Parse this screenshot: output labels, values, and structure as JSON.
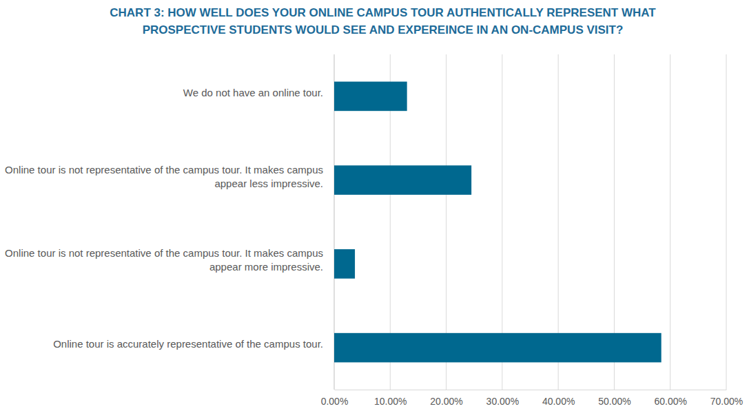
{
  "chart_data": {
    "type": "bar",
    "title": "CHART 3: HOW WELL DOES YOUR ONLINE CAMPUS TOUR AUTHENTICALLY REPRESENT WHAT PROSPECTIVE STUDENTS WOULD SEE AND EXPEREINCE IN AN ON-CAMPUS VISIT?",
    "categories": [
      "We do not have an online tour.",
      "Online tour is not representative of the campus tour. It makes campus appear less impressive.",
      "Online tour is not representative of the campus tour. It makes campus appear more impressive.",
      "Online tour is accurately representative of the campus tour."
    ],
    "values": [
      13.0,
      24.5,
      3.7,
      58.4
    ],
    "color": "#00688f",
    "orientation": "horizontal",
    "xlim": [
      0,
      70
    ],
    "xticks": [
      {
        "value": 0,
        "label": "0.00%"
      },
      {
        "value": 10,
        "label": "10.00%"
      },
      {
        "value": 20,
        "label": "20.00%"
      },
      {
        "value": 30,
        "label": "30.00%"
      },
      {
        "value": 40,
        "label": "40.00%"
      },
      {
        "value": 50,
        "label": "50.00%"
      },
      {
        "value": 60,
        "label": "60.00%"
      },
      {
        "value": 70,
        "label": "70.00%"
      }
    ],
    "grid": true
  }
}
